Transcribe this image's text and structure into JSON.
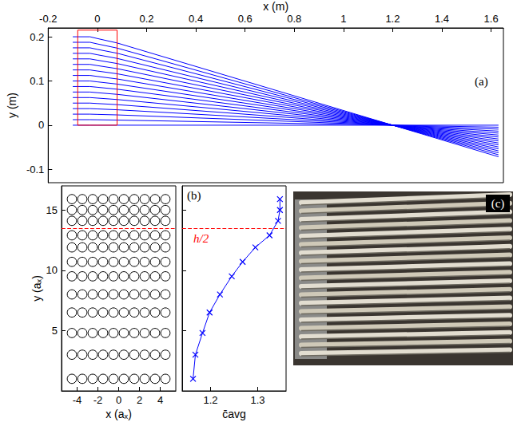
{
  "chart_data": [
    {
      "type": "line",
      "label": "(a)",
      "x_label": "x (m)",
      "y_label": "y (m)",
      "xlim": [
        -0.2,
        1.65
      ],
      "xticks": [
        -0.2,
        0,
        0.2,
        0.4,
        0.6,
        0.8,
        1,
        1.2,
        1.4,
        1.6
      ],
      "ylim": [
        -0.13,
        0.22
      ],
      "yticks": [
        -0.1,
        0,
        0.1,
        0.2
      ],
      "color": "#0000ff",
      "x": [
        -0.1,
        -0.03,
        0,
        0.08,
        1.2,
        1.63
      ],
      "series": [
        {
          "values": [
            0,
            0,
            0,
            0,
            0,
            0
          ]
        },
        {
          "values": [
            0.0125,
            0.0125,
            0.0123,
            0.0116,
            0,
            -0.0045
          ]
        },
        {
          "values": [
            0.025,
            0.025,
            0.0245,
            0.0233,
            0,
            -0.0089
          ]
        },
        {
          "values": [
            0.0375,
            0.0375,
            0.0368,
            0.0349,
            0,
            -0.0134
          ]
        },
        {
          "values": [
            0.05,
            0.05,
            0.049,
            0.0465,
            0,
            -0.0179
          ]
        },
        {
          "values": [
            0.0625,
            0.0625,
            0.0613,
            0.0581,
            0,
            -0.0223
          ]
        },
        {
          "values": [
            0.075,
            0.075,
            0.0735,
            0.0698,
            0,
            -0.0268
          ]
        },
        {
          "values": [
            0.0875,
            0.0875,
            0.0858,
            0.0814,
            0,
            -0.0312
          ]
        },
        {
          "values": [
            0.1,
            0.1,
            0.098,
            0.093,
            0,
            -0.0357
          ]
        },
        {
          "values": [
            0.1125,
            0.1125,
            0.1103,
            0.1046,
            0,
            -0.0402
          ]
        },
        {
          "values": [
            0.125,
            0.125,
            0.1225,
            0.1163,
            0,
            -0.0446
          ]
        },
        {
          "values": [
            0.1375,
            0.1375,
            0.1348,
            0.1279,
            0,
            -0.0491
          ]
        },
        {
          "values": [
            0.15,
            0.15,
            0.147,
            0.1395,
            0,
            -0.0536
          ]
        },
        {
          "values": [
            0.1625,
            0.1625,
            0.1593,
            0.1511,
            0,
            -0.058
          ]
        },
        {
          "values": [
            0.175,
            0.175,
            0.1715,
            0.1628,
            0,
            -0.0625
          ]
        },
        {
          "values": [
            0.1875,
            0.1875,
            0.1838,
            0.1744,
            0,
            -0.0669
          ]
        },
        {
          "values": [
            0.2,
            0.2,
            0.196,
            0.186,
            0,
            -0.0714
          ]
        },
        {
          "x": [
            -0.08,
            -0.08,
            0.08,
            0.08,
            -0.08
          ],
          "values": [
            0,
            0.215,
            0.215,
            0,
            0
          ],
          "color": "#ff0000"
        }
      ]
    },
    {
      "type": "circles",
      "x_label": "x (aₓ)",
      "y_label": "y (aₓ)",
      "xlim": [
        -5.5,
        5.5
      ],
      "xticks": [
        -4,
        -2,
        0,
        2,
        4
      ],
      "ylim": [
        0,
        17
      ],
      "yticks": [
        5,
        10,
        15
      ],
      "x": [
        -4.5,
        -3.5,
        -2.5,
        -1.5,
        -0.5,
        0.5,
        1.5,
        2.5,
        3.5,
        4.5
      ],
      "rows": [
        1,
        3,
        4.8,
        6.5,
        8,
        9.5,
        10.7,
        11.9,
        12.9,
        14.1,
        15,
        15.9
      ],
      "radius": 0.45,
      "color": "#000000",
      "hline": {
        "y": 13.5,
        "color": "#ff0000",
        "line_style": "dashed"
      }
    },
    {
      "type": "line",
      "label": "(b)",
      "x_label": "c̄avg",
      "xlim": [
        1.14,
        1.36
      ],
      "xticks": [
        1.2,
        1.3
      ],
      "ylim": [
        0,
        17
      ],
      "yticks": [
        5,
        10,
        15
      ],
      "tick_labels": "x",
      "series": [
        {
          "x": [
            1.163,
            1.168,
            1.183,
            1.198,
            1.22,
            1.245,
            1.268,
            1.295,
            1.325,
            1.343,
            1.347,
            1.347
          ],
          "values": [
            1,
            3,
            4.8,
            6.5,
            8,
            9.5,
            10.7,
            11.9,
            12.9,
            14.1,
            15,
            15.9
          ],
          "color": "#0000ff",
          "marker": "cross"
        }
      ],
      "hline": {
        "y": 13.5,
        "label": "h/2",
        "color": "#ff0000",
        "line_style": "dashed"
      }
    },
    {
      "type": "image",
      "label": "(c)"
    }
  ]
}
